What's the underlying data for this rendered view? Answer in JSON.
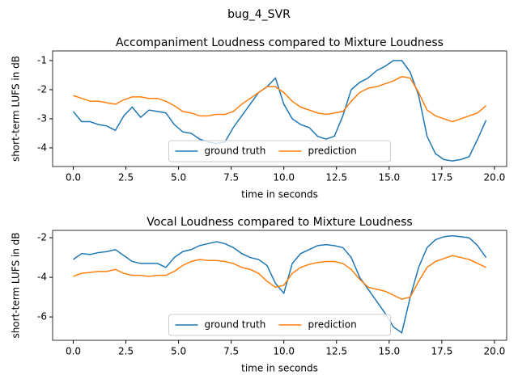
{
  "title": "bug_4_SVR",
  "chart_data": [
    {
      "type": "line",
      "title": "Accompaniment Loudness compared to Mixture Loudness",
      "x_label": "time in seconds",
      "y_label": "short-term LUFS in dB",
      "x": [
        0,
        0.4,
        0.8,
        1.2,
        1.6,
        2.0,
        2.4,
        2.8,
        3.2,
        3.6,
        4.0,
        4.4,
        4.8,
        5.2,
        5.6,
        6.0,
        6.4,
        6.8,
        7.2,
        7.6,
        8.0,
        8.4,
        8.8,
        9.2,
        9.6,
        10.0,
        10.4,
        10.8,
        11.2,
        11.6,
        12.0,
        12.4,
        12.8,
        13.2,
        13.6,
        14.0,
        14.4,
        14.8,
        15.2,
        15.6,
        16.0,
        16.4,
        16.8,
        17.2,
        17.6,
        18.0,
        18.4,
        18.8,
        19.2,
        19.6
      ],
      "series": [
        {
          "name": "ground truth",
          "color": "#1f77b4",
          "values": [
            -2.75,
            -3.1,
            -3.1,
            -3.2,
            -3.25,
            -3.4,
            -2.9,
            -2.6,
            -2.95,
            -2.7,
            -2.75,
            -2.8,
            -3.2,
            -3.45,
            -3.5,
            -3.7,
            -3.8,
            -3.85,
            -3.8,
            -3.3,
            -2.9,
            -2.5,
            -2.1,
            -1.9,
            -1.6,
            -2.5,
            -3.0,
            -3.2,
            -3.3,
            -3.6,
            -3.7,
            -3.6,
            -2.9,
            -2.0,
            -1.75,
            -1.6,
            -1.35,
            -1.2,
            -1.0,
            -1.0,
            -1.4,
            -2.2,
            -3.6,
            -4.2,
            -4.4,
            -4.45,
            -4.4,
            -4.3,
            -3.7,
            -3.05
          ]
        },
        {
          "name": "prediction",
          "color": "#ff7f0e",
          "values": [
            -2.2,
            -2.3,
            -2.4,
            -2.4,
            -2.45,
            -2.5,
            -2.35,
            -2.25,
            -2.25,
            -2.3,
            -2.3,
            -2.4,
            -2.55,
            -2.75,
            -2.8,
            -2.9,
            -2.9,
            -2.85,
            -2.85,
            -2.75,
            -2.5,
            -2.3,
            -2.1,
            -1.9,
            -1.9,
            -2.1,
            -2.4,
            -2.6,
            -2.7,
            -2.8,
            -2.85,
            -2.8,
            -2.75,
            -2.4,
            -2.1,
            -1.95,
            -1.9,
            -1.8,
            -1.7,
            -1.55,
            -1.6,
            -2.1,
            -2.7,
            -2.9,
            -3.0,
            -3.1,
            -3.0,
            -2.9,
            -2.8,
            -2.55
          ]
        }
      ],
      "xlim": [
        -0.98,
        20.58
      ],
      "xticks": [
        {
          "value": 0,
          "label": "0.0"
        },
        2.5,
        {
          "value": 5,
          "label": "5.0"
        },
        7.5,
        {
          "value": 10,
          "label": "10.0"
        },
        12.5,
        {
          "value": 15,
          "label": "15.0"
        },
        17.5,
        {
          "value": 20,
          "label": "20.0"
        }
      ],
      "ylim": [
        -4.64,
        -0.67
      ],
      "yticks": [
        -1,
        -2,
        -3,
        -4
      ],
      "legend": "lower center"
    },
    {
      "type": "line",
      "title": "Vocal Loudness compared to Mixture Loudness",
      "x_label": "time in seconds",
      "y_label": "short-term LUFS in dB",
      "x": [
        0,
        0.4,
        0.8,
        1.2,
        1.6,
        2.0,
        2.4,
        2.8,
        3.2,
        3.6,
        4.0,
        4.4,
        4.8,
        5.2,
        5.6,
        6.0,
        6.4,
        6.8,
        7.2,
        7.6,
        8.0,
        8.4,
        8.8,
        9.2,
        9.6,
        10.0,
        10.4,
        10.8,
        11.2,
        11.6,
        12.0,
        12.4,
        12.8,
        13.2,
        13.6,
        14.0,
        14.4,
        14.8,
        15.2,
        15.6,
        16.0,
        16.4,
        16.8,
        17.2,
        17.6,
        18.0,
        18.4,
        18.8,
        19.2,
        19.6
      ],
      "series": [
        {
          "name": "ground truth",
          "color": "#1f77b4",
          "values": [
            -3.1,
            -2.8,
            -2.85,
            -2.75,
            -2.7,
            -2.6,
            -2.9,
            -3.2,
            -3.3,
            -3.3,
            -3.3,
            -3.5,
            -3.0,
            -2.7,
            -2.6,
            -2.4,
            -2.3,
            -2.2,
            -2.3,
            -2.5,
            -2.8,
            -3.0,
            -3.1,
            -3.4,
            -4.3,
            -4.8,
            -3.3,
            -2.8,
            -2.6,
            -2.4,
            -2.35,
            -2.4,
            -2.5,
            -3.0,
            -4.0,
            -4.6,
            -5.2,
            -5.8,
            -6.5,
            -6.8,
            -5.0,
            -3.5,
            -2.5,
            -2.1,
            -1.95,
            -1.9,
            -1.95,
            -2.0,
            -2.4,
            -3.0
          ]
        },
        {
          "name": "prediction",
          "color": "#ff7f0e",
          "values": [
            -3.95,
            -3.8,
            -3.75,
            -3.7,
            -3.7,
            -3.6,
            -3.8,
            -3.9,
            -3.9,
            -3.95,
            -3.9,
            -3.9,
            -3.7,
            -3.4,
            -3.2,
            -3.1,
            -3.15,
            -3.15,
            -3.2,
            -3.3,
            -3.5,
            -3.6,
            -3.8,
            -4.2,
            -4.5,
            -4.4,
            -3.8,
            -3.5,
            -3.35,
            -3.25,
            -3.2,
            -3.2,
            -3.3,
            -3.6,
            -4.1,
            -4.5,
            -4.6,
            -4.7,
            -4.9,
            -5.1,
            -5.0,
            -4.2,
            -3.5,
            -3.2,
            -3.05,
            -2.9,
            -3.0,
            -3.1,
            -3.3,
            -3.5
          ]
        }
      ],
      "xlim": [
        -0.98,
        20.58
      ],
      "xticks": [
        {
          "value": 0,
          "label": "0.0"
        },
        2.5,
        {
          "value": 5,
          "label": "5.0"
        },
        7.5,
        {
          "value": 10,
          "label": "10.0"
        },
        12.5,
        {
          "value": 15,
          "label": "15.0"
        },
        17.5,
        {
          "value": 20,
          "label": "20.0"
        }
      ],
      "ylim": [
        -7.18,
        -1.63
      ],
      "yticks": [
        -2,
        -4,
        -6
      ],
      "legend": "lower center"
    }
  ]
}
